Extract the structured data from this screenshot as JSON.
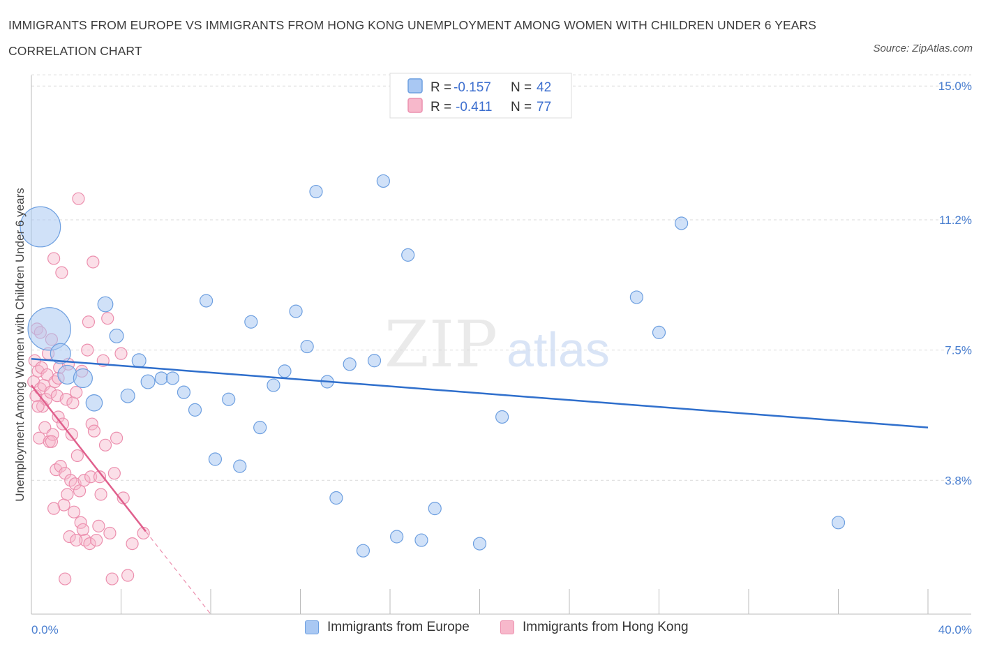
{
  "title": "IMMIGRANTS FROM EUROPE VS IMMIGRANTS FROM HONG KONG UNEMPLOYMENT AMONG WOMEN WITH CHILDREN UNDER 6 YEARS CORRELATION CHART",
  "source": "Source: ZipAtlas.com",
  "watermark": {
    "zip": "ZIP",
    "atlas": "atlas"
  },
  "colors": {
    "europe_fill": "#a9c8f3",
    "europe_stroke": "#6d9fe0",
    "europe_line": "#2f6fcc",
    "hk_fill": "#f7b8cb",
    "hk_stroke": "#ec8fae",
    "hk_line": "#e0608d",
    "tick_label": "#4a7fd0",
    "grid": "#d9d9d9"
  },
  "legend": {
    "r_label": "R =",
    "n_label": "N =",
    "rows": [
      {
        "r": "-0.157",
        "n": "42",
        "series": "europe"
      },
      {
        "r": "-0.411",
        "n": "77",
        "series": "hk"
      }
    ]
  },
  "bottom_legend": [
    {
      "label": "Immigrants from Europe",
      "series": "europe"
    },
    {
      "label": "Immigrants from Hong Kong",
      "series": "hk"
    }
  ],
  "chart_data": {
    "type": "scatter",
    "title": "IMMIGRANTS FROM EUROPE VS IMMIGRANTS FROM HONG KONG UNEMPLOYMENT AMONG WOMEN WITH CHILDREN UNDER 6 YEARS CORRELATION CHART",
    "xlabel": "",
    "ylabel": "Unemployment Among Women with Children Under 6 years",
    "xlim": [
      0,
      40
    ],
    "ylim": [
      0,
      15.5
    ],
    "x_tick_labels": [
      "0.0%",
      "40.0%"
    ],
    "y_ticks": [
      {
        "value": 3.8,
        "label": "3.8%"
      },
      {
        "value": 7.5,
        "label": "7.5%"
      },
      {
        "value": 11.2,
        "label": "11.2%"
      },
      {
        "value": 15.0,
        "label": "15.0%"
      }
    ],
    "grid": "horizontal dashed",
    "legend_position": "top-center",
    "series": [
      {
        "name": "Immigrants from Europe",
        "color": "#a9c8f3",
        "r": -0.157,
        "n": 42,
        "trend": {
          "x": [
            0,
            40
          ],
          "y": [
            7.25,
            5.3
          ]
        },
        "points": [
          {
            "x": 0.4,
            "y": 11.0,
            "size": 3.2
          },
          {
            "x": 0.8,
            "y": 8.1,
            "size": 3.4
          },
          {
            "x": 1.3,
            "y": 7.4,
            "size": 1.6
          },
          {
            "x": 1.6,
            "y": 6.8,
            "size": 1.5
          },
          {
            "x": 2.3,
            "y": 6.7,
            "size": 1.5
          },
          {
            "x": 2.8,
            "y": 6.0,
            "size": 1.3
          },
          {
            "x": 3.3,
            "y": 8.8,
            "size": 1.2
          },
          {
            "x": 3.8,
            "y": 7.9,
            "size": 1.1
          },
          {
            "x": 4.3,
            "y": 6.2,
            "size": 1.1
          },
          {
            "x": 4.8,
            "y": 7.2,
            "size": 1.1
          },
          {
            "x": 5.2,
            "y": 6.6,
            "size": 1.1
          },
          {
            "x": 5.8,
            "y": 6.7,
            "size": 1.0
          },
          {
            "x": 6.3,
            "y": 6.7,
            "size": 1.0
          },
          {
            "x": 6.8,
            "y": 6.3,
            "size": 1.0
          },
          {
            "x": 7.3,
            "y": 5.8,
            "size": 1.0
          },
          {
            "x": 7.8,
            "y": 8.9,
            "size": 1.0
          },
          {
            "x": 8.2,
            "y": 4.4,
            "size": 1.0
          },
          {
            "x": 8.8,
            "y": 6.1,
            "size": 1.0
          },
          {
            "x": 9.3,
            "y": 4.2,
            "size": 1.0
          },
          {
            "x": 9.8,
            "y": 8.3,
            "size": 1.0
          },
          {
            "x": 10.2,
            "y": 5.3,
            "size": 1.0
          },
          {
            "x": 10.8,
            "y": 6.5,
            "size": 1.0
          },
          {
            "x": 11.3,
            "y": 6.9,
            "size": 1.0
          },
          {
            "x": 11.8,
            "y": 8.6,
            "size": 1.0
          },
          {
            "x": 12.3,
            "y": 7.6,
            "size": 1.0
          },
          {
            "x": 12.7,
            "y": 12.0,
            "size": 1.0
          },
          {
            "x": 13.2,
            "y": 6.6,
            "size": 1.0
          },
          {
            "x": 13.6,
            "y": 3.3,
            "size": 1.0
          },
          {
            "x": 14.2,
            "y": 7.1,
            "size": 1.0
          },
          {
            "x": 14.8,
            "y": 1.8,
            "size": 1.0
          },
          {
            "x": 15.3,
            "y": 7.2,
            "size": 1.0
          },
          {
            "x": 15.7,
            "y": 12.3,
            "size": 1.0
          },
          {
            "x": 16.3,
            "y": 2.2,
            "size": 1.0
          },
          {
            "x": 16.8,
            "y": 10.2,
            "size": 1.0
          },
          {
            "x": 17.4,
            "y": 2.1,
            "size": 1.0
          },
          {
            "x": 18.0,
            "y": 3.0,
            "size": 1.0
          },
          {
            "x": 20.0,
            "y": 2.0,
            "size": 1.0
          },
          {
            "x": 21.0,
            "y": 5.6,
            "size": 1.0
          },
          {
            "x": 27.0,
            "y": 9.0,
            "size": 1.0
          },
          {
            "x": 28.0,
            "y": 8.0,
            "size": 1.0
          },
          {
            "x": 29.0,
            "y": 11.1,
            "size": 1.0
          },
          {
            "x": 36.0,
            "y": 2.6,
            "size": 1.0
          }
        ]
      },
      {
        "name": "Immigrants from Hong Kong",
        "color": "#f7b8cb",
        "r": -0.411,
        "n": 77,
        "trend": {
          "x": [
            0,
            5.1
          ],
          "y": [
            6.5,
            2.35
          ]
        },
        "trend_dashed_extension": {
          "x": [
            5.1,
            8.0
          ],
          "y": [
            2.35,
            0.0
          ]
        },
        "points": [
          {
            "x": 0.1,
            "y": 6.6
          },
          {
            "x": 0.15,
            "y": 7.2
          },
          {
            "x": 0.2,
            "y": 6.2
          },
          {
            "x": 0.25,
            "y": 8.1
          },
          {
            "x": 0.3,
            "y": 6.9
          },
          {
            "x": 0.35,
            "y": 5.0
          },
          {
            "x": 0.4,
            "y": 6.4
          },
          {
            "x": 0.45,
            "y": 7.0
          },
          {
            "x": 0.5,
            "y": 5.9
          },
          {
            "x": 0.55,
            "y": 6.5
          },
          {
            "x": 0.6,
            "y": 5.3
          },
          {
            "x": 0.65,
            "y": 6.1
          },
          {
            "x": 0.7,
            "y": 6.8
          },
          {
            "x": 0.75,
            "y": 7.4
          },
          {
            "x": 0.8,
            "y": 4.9
          },
          {
            "x": 0.85,
            "y": 6.3
          },
          {
            "x": 0.9,
            "y": 7.8
          },
          {
            "x": 0.95,
            "y": 5.1
          },
          {
            "x": 1.0,
            "y": 10.1
          },
          {
            "x": 1.05,
            "y": 6.6
          },
          {
            "x": 1.1,
            "y": 4.1
          },
          {
            "x": 1.15,
            "y": 6.2
          },
          {
            "x": 1.2,
            "y": 5.6
          },
          {
            "x": 1.25,
            "y": 7.0
          },
          {
            "x": 1.3,
            "y": 4.2
          },
          {
            "x": 1.35,
            "y": 9.7
          },
          {
            "x": 1.4,
            "y": 5.4
          },
          {
            "x": 1.45,
            "y": 3.1
          },
          {
            "x": 1.5,
            "y": 4.0
          },
          {
            "x": 1.55,
            "y": 6.1
          },
          {
            "x": 1.6,
            "y": 3.4
          },
          {
            "x": 1.65,
            "y": 7.1
          },
          {
            "x": 1.7,
            "y": 2.2
          },
          {
            "x": 1.75,
            "y": 3.8
          },
          {
            "x": 1.8,
            "y": 5.1
          },
          {
            "x": 1.85,
            "y": 6.0
          },
          {
            "x": 1.9,
            "y": 2.9
          },
          {
            "x": 1.95,
            "y": 3.7
          },
          {
            "x": 2.0,
            "y": 6.3
          },
          {
            "x": 2.05,
            "y": 4.5
          },
          {
            "x": 2.1,
            "y": 11.8
          },
          {
            "x": 2.15,
            "y": 3.5
          },
          {
            "x": 2.2,
            "y": 2.6
          },
          {
            "x": 2.25,
            "y": 6.9
          },
          {
            "x": 2.3,
            "y": 2.4
          },
          {
            "x": 2.35,
            "y": 3.8
          },
          {
            "x": 2.4,
            "y": 2.1
          },
          {
            "x": 2.5,
            "y": 7.5
          },
          {
            "x": 2.55,
            "y": 8.3
          },
          {
            "x": 2.6,
            "y": 2.0
          },
          {
            "x": 2.65,
            "y": 3.9
          },
          {
            "x": 2.7,
            "y": 5.4
          },
          {
            "x": 2.75,
            "y": 10.0
          },
          {
            "x": 2.8,
            "y": 5.2
          },
          {
            "x": 2.9,
            "y": 2.1
          },
          {
            "x": 3.0,
            "y": 2.5
          },
          {
            "x": 3.05,
            "y": 3.9
          },
          {
            "x": 3.1,
            "y": 3.4
          },
          {
            "x": 3.2,
            "y": 7.2
          },
          {
            "x": 3.3,
            "y": 4.8
          },
          {
            "x": 3.4,
            "y": 8.4
          },
          {
            "x": 3.5,
            "y": 2.3
          },
          {
            "x": 3.6,
            "y": 1.0
          },
          {
            "x": 3.7,
            "y": 4.0
          },
          {
            "x": 3.8,
            "y": 5.0
          },
          {
            "x": 4.0,
            "y": 7.4
          },
          {
            "x": 4.1,
            "y": 3.3
          },
          {
            "x": 4.3,
            "y": 1.1
          },
          {
            "x": 4.5,
            "y": 2.0
          },
          {
            "x": 5.0,
            "y": 2.3
          },
          {
            "x": 0.9,
            "y": 4.9
          },
          {
            "x": 1.0,
            "y": 3.0
          },
          {
            "x": 0.4,
            "y": 8.0
          },
          {
            "x": 0.3,
            "y": 5.9
          },
          {
            "x": 1.2,
            "y": 6.7
          },
          {
            "x": 1.5,
            "y": 1.0
          },
          {
            "x": 2.0,
            "y": 2.1
          }
        ]
      }
    ]
  }
}
